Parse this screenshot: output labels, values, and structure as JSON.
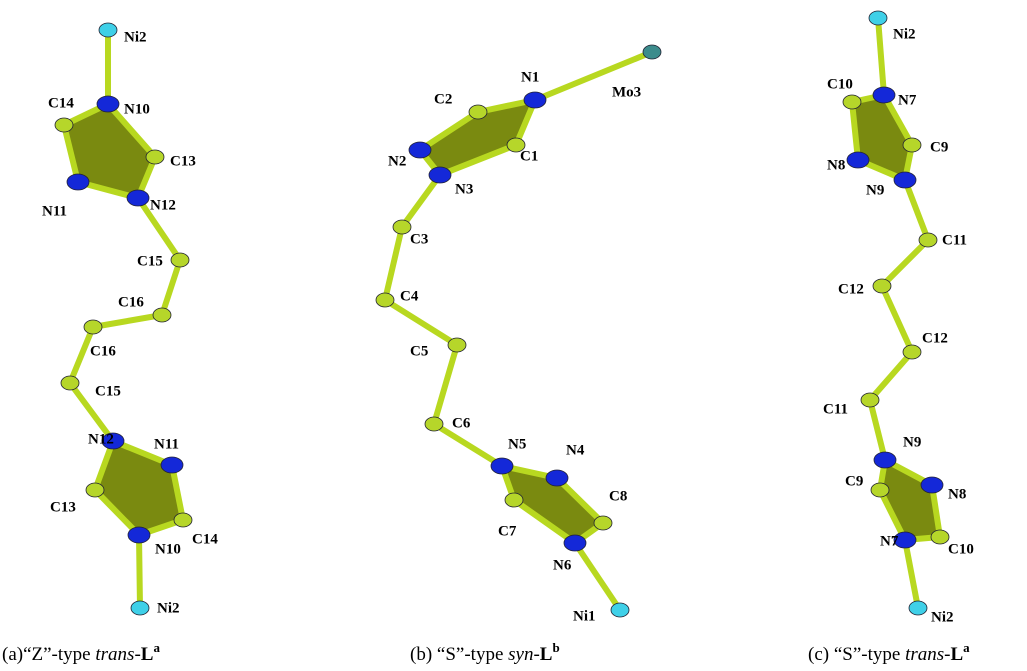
{
  "panels": [
    {
      "atoms": [
        "Ni2",
        "N10",
        "C14",
        "C13",
        "N11",
        "N12",
        "C15",
        "C16",
        "C16",
        "C15",
        "N12",
        "N11",
        "C13",
        "C14",
        "N10",
        "Ni2"
      ],
      "caption": {
        "lead": "(a)“Z”-type ",
        "italic": "trans",
        "dash": "-",
        "bold": "L",
        "sup": "a"
      }
    },
    {
      "atoms": [
        "Mo3",
        "N1",
        "C2",
        "C1",
        "N2",
        "N3",
        "C3",
        "C4",
        "C5",
        "C6",
        "N5",
        "N4",
        "C8",
        "C7",
        "N6",
        "Ni1"
      ],
      "caption": {
        "lead": "(b) “S”-type ",
        "italic": "syn",
        "dash": "-",
        "bold": "L",
        "sup": "b"
      }
    },
    {
      "atoms": [
        "Ni2",
        "N7",
        "C10",
        "C9",
        "N8",
        "N9",
        "C11",
        "C12",
        "C12",
        "C11",
        "N9",
        "N8",
        "C9",
        "N7",
        "C10",
        "Ni2"
      ],
      "caption": {
        "lead": "(c) “S”-type ",
        "italic": "trans",
        "dash": "-",
        "bold": "L",
        "sup": "a"
      }
    }
  ]
}
